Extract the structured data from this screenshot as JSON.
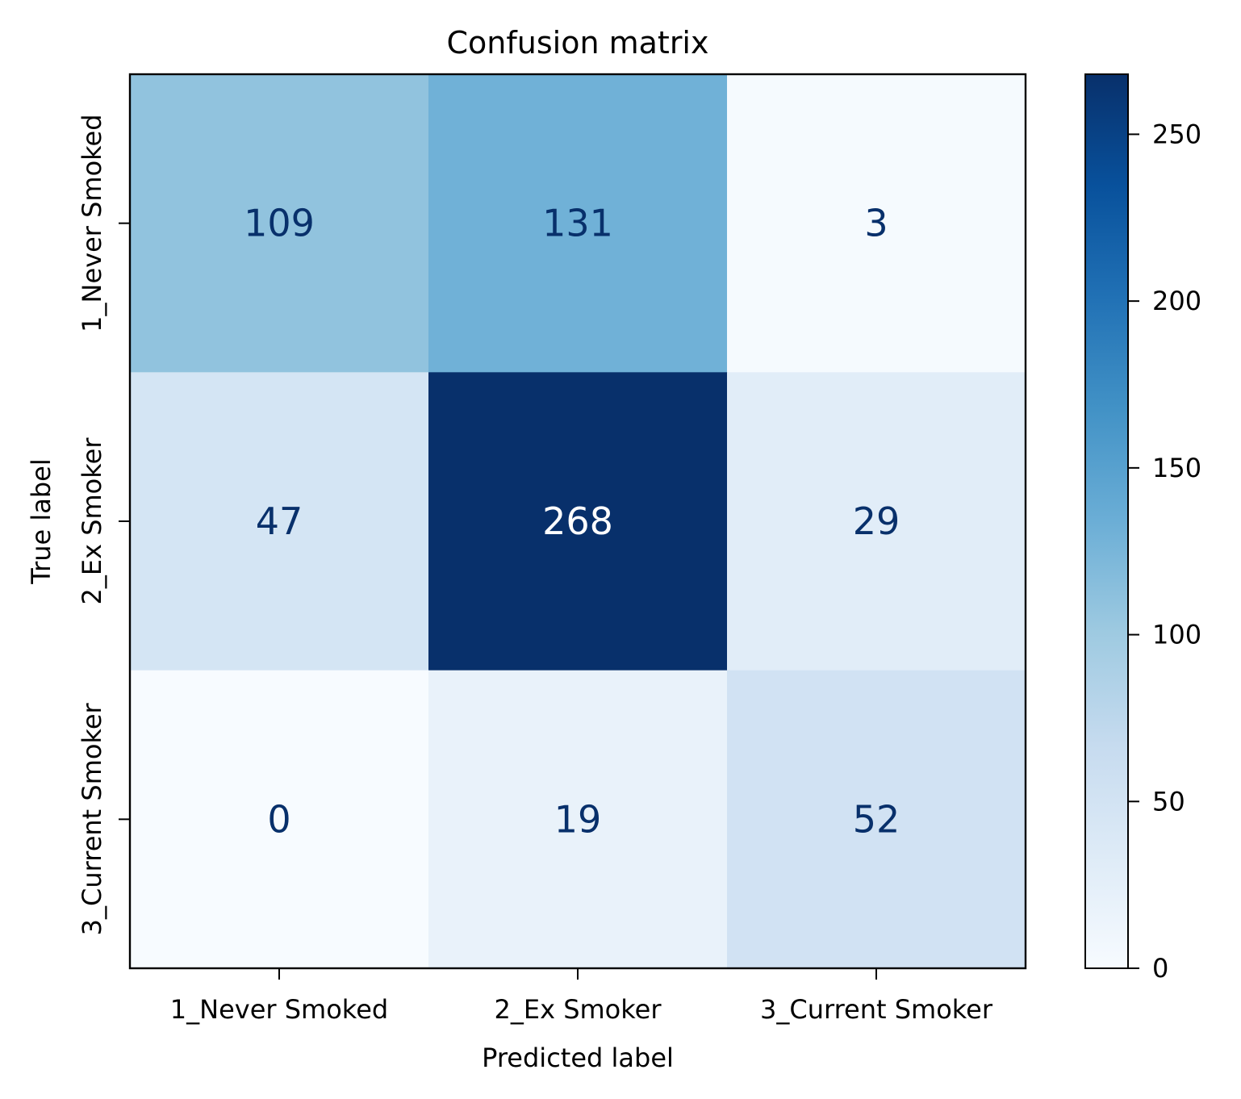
{
  "chart_data": {
    "type": "heatmap",
    "title": "Confusion matrix",
    "xlabel": "Predicted label",
    "ylabel": "True label",
    "x_categories": [
      "1_Never Smoked",
      "2_Ex Smoker",
      "3_Current Smoker"
    ],
    "y_categories": [
      "1_Never Smoked",
      "2_Ex Smoker",
      "3_Current Smoker"
    ],
    "values": [
      [
        109,
        131,
        3
      ],
      [
        47,
        268,
        29
      ],
      [
        0,
        19,
        52
      ]
    ],
    "colormap": "Blues",
    "colorbar": {
      "range": [
        0,
        268
      ],
      "ticks": [
        0,
        50,
        100,
        150,
        200,
        250
      ],
      "tick_labels": [
        "0",
        "50",
        "100",
        "150",
        "200",
        "250"
      ]
    },
    "text_color_dark": "#08306b",
    "text_color_light": "#ffffff"
  }
}
